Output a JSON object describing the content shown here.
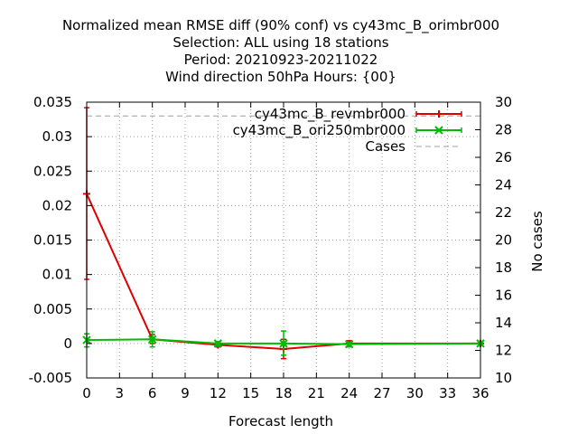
{
  "chart_data": {
    "type": "line",
    "title_lines": [
      "Normalized mean RMSE diff (90% conf) vs cy43mc_B_orimbr000",
      "Selection: ALL using    18 stations",
      "Period: 20210923-20211022",
      "Wind direction 50hPa   Hours: {00}"
    ],
    "xlabel": "Forecast length",
    "ylabel": "",
    "y2label": "No cases",
    "xlim": [
      0,
      36
    ],
    "ylim": [
      -0.005,
      0.035
    ],
    "y2lim": [
      10,
      30
    ],
    "x_ticks": [
      "0",
      "3",
      "6",
      "9",
      "12",
      "15",
      "18",
      "21",
      "24",
      "27",
      "30",
      "33",
      "36"
    ],
    "x_tick_values": [
      0,
      3,
      6,
      9,
      12,
      15,
      18,
      21,
      24,
      27,
      30,
      33,
      36
    ],
    "y_ticks": [
      "-0.005",
      "0",
      "0.005",
      "0.01",
      "0.015",
      "0.02",
      "0.025",
      "0.03",
      "0.035"
    ],
    "y_tick_values": [
      -0.005,
      0,
      0.005,
      0.01,
      0.015,
      0.02,
      0.025,
      0.03,
      0.035
    ],
    "y2_ticks": [
      "10",
      "12",
      "14",
      "16",
      "18",
      "20",
      "22",
      "24",
      "26",
      "28",
      "30"
    ],
    "y2_tick_values": [
      10,
      12,
      14,
      16,
      18,
      20,
      22,
      24,
      26,
      28,
      30
    ],
    "grid": true,
    "legend_position": "top-right",
    "series": [
      {
        "name": "cy43mc_B_revmbr000",
        "color": "#dd0000",
        "marker": "plus",
        "points": [
          {
            "x": 0,
            "y": 0.0217,
            "lo": 0.0093,
            "hi": 0.0342
          },
          {
            "x": 6,
            "y": 0.0006,
            "lo": 0.0,
            "hi": 0.0013
          },
          {
            "x": 12,
            "y": -0.0002,
            "lo": -0.0005,
            "hi": 0.0001
          },
          {
            "x": 18,
            "y": -0.0008,
            "lo": -0.0022,
            "hi": 0.0006
          },
          {
            "x": 24,
            "y": 0.0,
            "lo": -0.0004,
            "hi": 0.0004
          },
          {
            "x": 36,
            "y": 0.0,
            "lo": 0.0,
            "hi": 0.0
          }
        ]
      },
      {
        "name": "cy43mc_B_ori250mbr000",
        "color": "#00bb00",
        "marker": "x",
        "points": [
          {
            "x": 0,
            "y": 0.0005,
            "lo": -0.0005,
            "hi": 0.0014
          },
          {
            "x": 6,
            "y": 0.0006,
            "lo": -0.0005,
            "hi": 0.0017
          },
          {
            "x": 12,
            "y": 0.0,
            "lo": -0.0004,
            "hi": 0.0003
          },
          {
            "x": 18,
            "y": 0.0,
            "lo": -0.0017,
            "hi": 0.0018
          },
          {
            "x": 24,
            "y": -0.0001,
            "lo": -0.0005,
            "hi": 0.0002
          },
          {
            "x": 36,
            "y": 0.0,
            "lo": -0.0001,
            "hi": 0.0001
          }
        ]
      },
      {
        "name": "Cases",
        "color": "#a0a0a0",
        "axis": "y2",
        "style": "dashed",
        "points": [
          {
            "x": 0,
            "y": 29
          },
          {
            "x": 6,
            "y": 29
          },
          {
            "x": 12,
            "y": 29
          },
          {
            "x": 18,
            "y": 29
          },
          {
            "x": 24,
            "y": 29
          },
          {
            "x": 36,
            "y": 29
          }
        ]
      }
    ]
  }
}
